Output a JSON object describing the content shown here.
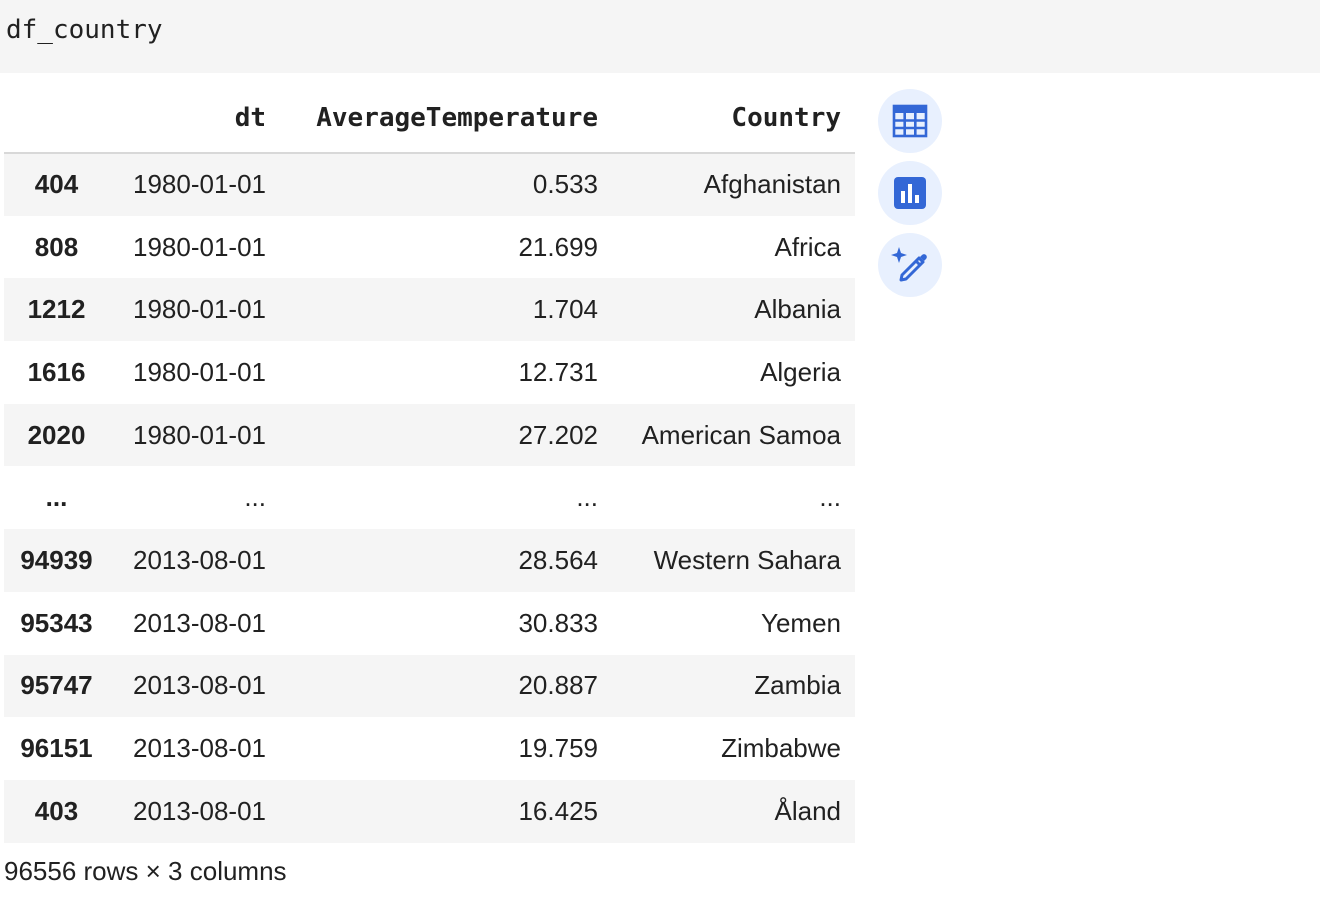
{
  "code_cell": {
    "source": "df_country"
  },
  "dataframe": {
    "columns": [
      "dt",
      "AverageTemperature",
      "Country"
    ],
    "rows": [
      {
        "index": "404",
        "dt": "1980-01-01",
        "AverageTemperature": "0.533",
        "Country": "Afghanistan"
      },
      {
        "index": "808",
        "dt": "1980-01-01",
        "AverageTemperature": "21.699",
        "Country": "Africa"
      },
      {
        "index": "1212",
        "dt": "1980-01-01",
        "AverageTemperature": "1.704",
        "Country": "Albania"
      },
      {
        "index": "1616",
        "dt": "1980-01-01",
        "AverageTemperature": "12.731",
        "Country": "Algeria"
      },
      {
        "index": "2020",
        "dt": "1980-01-01",
        "AverageTemperature": "27.202",
        "Country": "American Samoa"
      },
      {
        "index": "...",
        "dt": "...",
        "AverageTemperature": "...",
        "Country": "..."
      },
      {
        "index": "94939",
        "dt": "2013-08-01",
        "AverageTemperature": "28.564",
        "Country": "Western Sahara"
      },
      {
        "index": "95343",
        "dt": "2013-08-01",
        "AverageTemperature": "30.833",
        "Country": "Yemen"
      },
      {
        "index": "95747",
        "dt": "2013-08-01",
        "AverageTemperature": "20.887",
        "Country": "Zambia"
      },
      {
        "index": "96151",
        "dt": "2013-08-01",
        "AverageTemperature": "19.759",
        "Country": "Zimbabwe"
      },
      {
        "index": "403",
        "dt": "2013-08-01",
        "AverageTemperature": "16.425",
        "Country": "Åland"
      }
    ],
    "shape_text": "96556 rows × 3 columns"
  },
  "side_buttons": [
    {
      "name": "interactive-table-button",
      "icon": "table-icon"
    },
    {
      "name": "suggest-charts-button",
      "icon": "bar-chart-icon"
    },
    {
      "name": "generate-code-button",
      "icon": "sparkle-pencil-icon"
    }
  ],
  "colors": {
    "accent": "#3367d6",
    "button_bg": "#e8f0fe",
    "stripe": "#f5f5f5"
  }
}
